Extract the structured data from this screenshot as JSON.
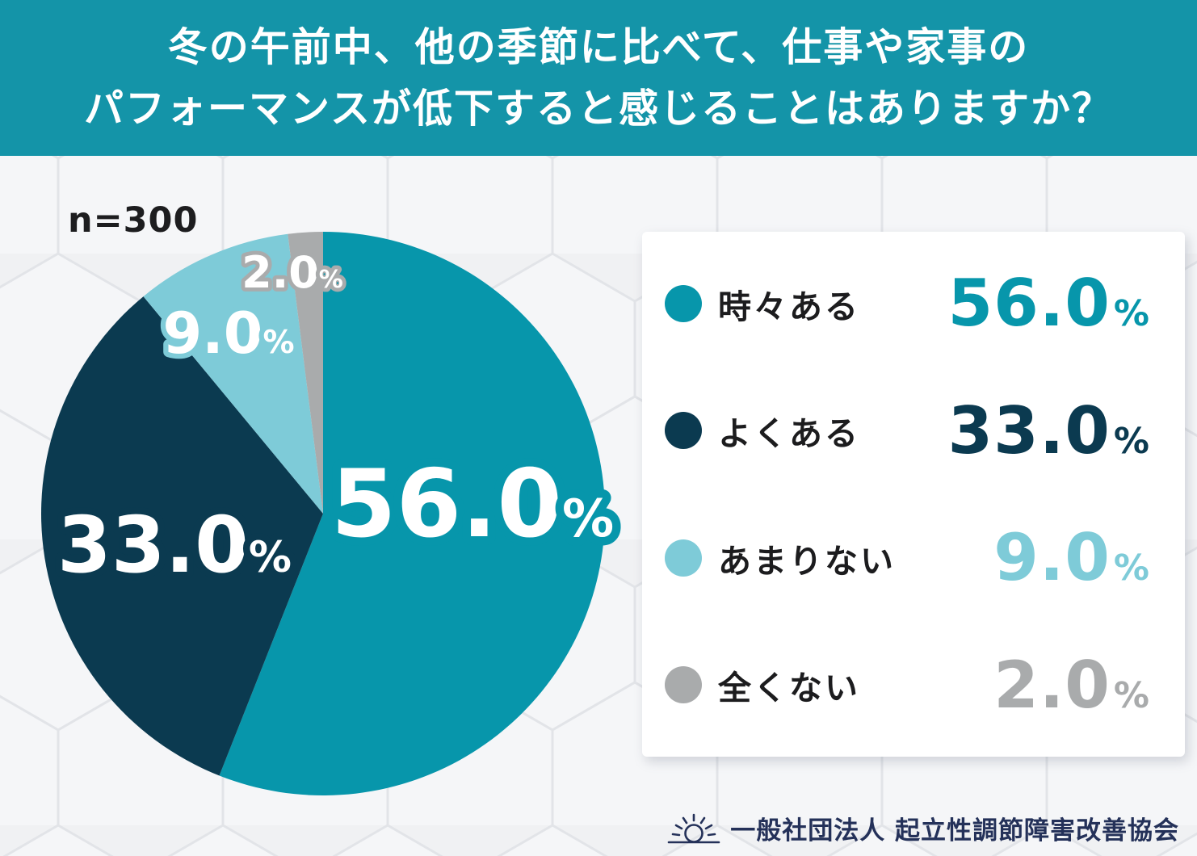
{
  "header": {
    "title_line1": "冬の午前中、他の季節に比べて、仕事や家事の",
    "title_line2": "パフォーマンスが低下すると感じることはありますか？"
  },
  "chart_data": {
    "type": "pie",
    "title": "冬の午前中、他の季節に比べて、仕事や家事のパフォーマンスが低下すると感じることはありますか？",
    "sample_size": "n=300",
    "start_angle_deg_from_top": 0,
    "direction": "clockwise",
    "percent_suffix": "%",
    "legend_position": "right",
    "slices": [
      {
        "label": "時々ある",
        "value": 56.0,
        "display": "56.0",
        "color": "#0796AB"
      },
      {
        "label": "よくある",
        "value": 33.0,
        "display": "33.0",
        "color": "#0B3A50"
      },
      {
        "label": "あまりない",
        "value": 9.0,
        "display": "9.0",
        "color": "#7ECBD8"
      },
      {
        "label": "全くない",
        "value": 2.0,
        "display": "2.0",
        "color": "#A9ABAC"
      }
    ]
  },
  "footer": {
    "organization": "一般社団法人 起立性調節障害改善協会"
  }
}
